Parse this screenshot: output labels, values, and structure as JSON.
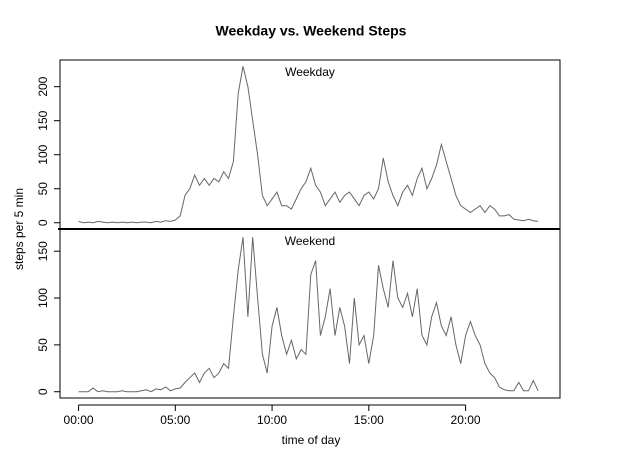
{
  "chart_data": {
    "type": "line",
    "title": "Weekday vs. Weekend Steps",
    "x_label": "time of day",
    "y_label": "steps per 5 min",
    "color": "#666666",
    "x": [
      0,
      0.25,
      0.5,
      0.75,
      1,
      1.25,
      1.5,
      1.75,
      2,
      2.25,
      2.5,
      2.75,
      3,
      3.25,
      3.5,
      3.75,
      4,
      4.25,
      4.5,
      4.75,
      5,
      5.25,
      5.5,
      5.75,
      6,
      6.25,
      6.5,
      6.75,
      7,
      7.25,
      7.5,
      7.75,
      8,
      8.25,
      8.5,
      8.75,
      9,
      9.25,
      9.5,
      9.75,
      10,
      10.25,
      10.5,
      10.75,
      11,
      11.25,
      11.5,
      11.75,
      12,
      12.25,
      12.5,
      12.75,
      13,
      13.25,
      13.5,
      13.75,
      14,
      14.25,
      14.5,
      14.75,
      15,
      15.25,
      15.5,
      15.75,
      16,
      16.25,
      16.5,
      16.75,
      17,
      17.25,
      17.5,
      17.75,
      18,
      18.25,
      18.5,
      18.75,
      19,
      19.25,
      19.5,
      19.75,
      20,
      20.25,
      20.5,
      20.75,
      21,
      21.25,
      21.5,
      21.75,
      22,
      22.25,
      22.5,
      22.75,
      23,
      23.25,
      23.5,
      23.75
    ],
    "xlim": [
      -0.96,
      24.88
    ],
    "xticks": [
      {
        "value": 0,
        "label": "00:00"
      },
      {
        "value": 5,
        "label": "05:00"
      },
      {
        "value": 10,
        "label": "10:00"
      },
      {
        "value": 15,
        "label": "15:00"
      },
      {
        "value": 20,
        "label": "20:00"
      }
    ],
    "series": [
      {
        "name": "Weekday",
        "ylim": [
          -9.2,
          239.2
        ],
        "yticks": [
          0,
          50,
          100,
          150,
          200
        ],
        "values": [
          2,
          0,
          1,
          0,
          2,
          1,
          0,
          1,
          0,
          1,
          0,
          1,
          0,
          1,
          1,
          0,
          2,
          1,
          3,
          2,
          4,
          10,
          40,
          50,
          70,
          55,
          65,
          55,
          65,
          60,
          75,
          65,
          90,
          190,
          230,
          200,
          150,
          100,
          40,
          25,
          35,
          45,
          25,
          25,
          20,
          35,
          50,
          60,
          80,
          55,
          45,
          25,
          35,
          45,
          30,
          40,
          45,
          35,
          25,
          40,
          45,
          35,
          50,
          95,
          60,
          40,
          25,
          45,
          55,
          40,
          65,
          80,
          50,
          65,
          85,
          115,
          90,
          65,
          40,
          25,
          20,
          15,
          20,
          25,
          15,
          25,
          20,
          10,
          10,
          12,
          5,
          4,
          3,
          5,
          3,
          2
        ]
      },
      {
        "name": "Weekend",
        "ylim": [
          -6.7,
          173.7
        ],
        "yticks": [
          0,
          50,
          100,
          150
        ],
        "values": [
          0,
          0,
          0,
          4,
          0,
          1,
          0,
          0,
          0,
          1,
          0,
          0,
          0,
          1,
          2,
          0,
          3,
          2,
          5,
          1,
          3,
          4,
          10,
          15,
          20,
          10,
          20,
          25,
          15,
          20,
          30,
          25,
          80,
          130,
          165,
          80,
          165,
          100,
          40,
          20,
          70,
          90,
          60,
          40,
          55,
          35,
          45,
          40,
          125,
          140,
          60,
          80,
          110,
          60,
          90,
          70,
          30,
          100,
          50,
          60,
          30,
          60,
          135,
          110,
          90,
          140,
          100,
          90,
          105,
          80,
          110,
          60,
          50,
          80,
          95,
          70,
          60,
          80,
          50,
          30,
          60,
          75,
          60,
          50,
          30,
          20,
          15,
          5,
          2,
          1,
          1,
          10,
          1,
          1,
          12,
          1
        ]
      }
    ]
  }
}
